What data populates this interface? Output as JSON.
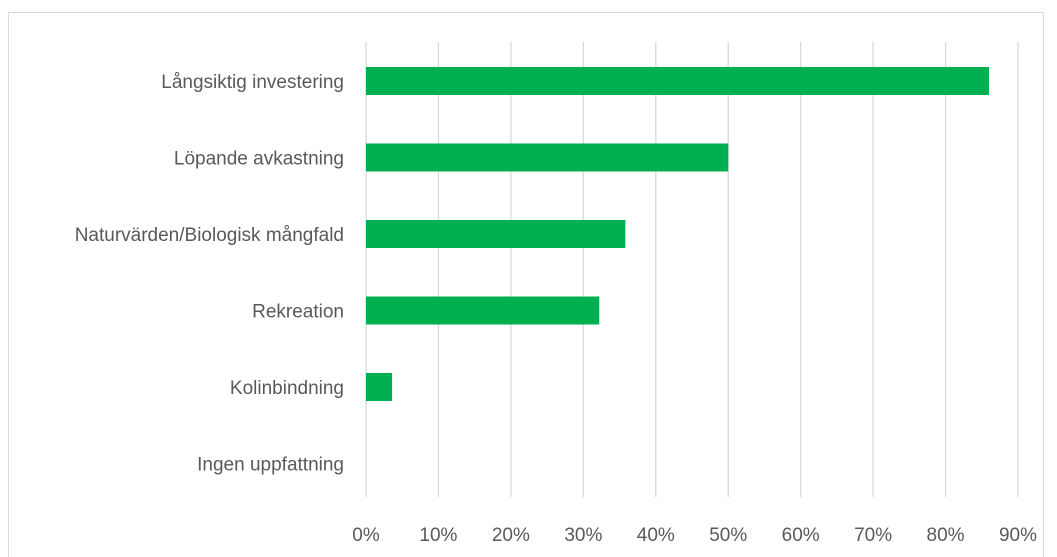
{
  "chart_data": {
    "type": "bar",
    "orientation": "horizontal",
    "categories": [
      "Långsiktig investering",
      "Löpande avkastning",
      "Naturvärden/Biologisk mångfald",
      "Rekreation",
      "Kolinbindning",
      "Ingen uppfattning"
    ],
    "values": [
      0.86,
      0.5,
      0.358,
      0.322,
      0.036,
      0.0
    ],
    "xlim": [
      0,
      0.9
    ],
    "x_ticks": [
      0,
      0.1,
      0.2,
      0.3,
      0.4,
      0.5,
      0.6,
      0.7,
      0.8,
      0.9
    ],
    "x_tick_labels": [
      "0%",
      "10%",
      "20%",
      "30%",
      "40%",
      "50%",
      "60%",
      "70%",
      "80%",
      "90%"
    ],
    "grid": true,
    "legend": "none",
    "bar_color": "#00b050",
    "grid_color": "#d9d9d9",
    "title": "",
    "xlabel": "",
    "ylabel": ""
  }
}
